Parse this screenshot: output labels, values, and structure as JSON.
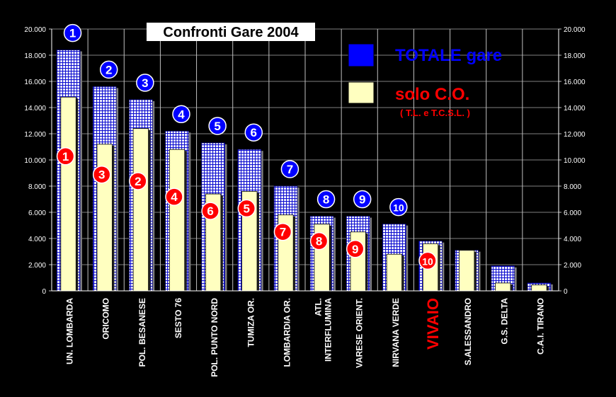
{
  "chart_data": {
    "type": "bar",
    "title": "Confronti Gare 2004",
    "categories": [
      "UN. LOMBARDA",
      "ORICOMO",
      "POL. BESANESE",
      "SESTO 76",
      "POL. PUNTO NORD",
      "TUMIZA OR.",
      "LOMBARDIA OR.",
      "ATL.\nINTERFLUMINA",
      "VARESE ORIENT.",
      "NIRVANA VERDE",
      "VIVAIO",
      "S.ALESSANDRO",
      "G.S. DELTA",
      "C.A.I. TIRANO"
    ],
    "highlight_category": "VIVAIO",
    "series": [
      {
        "name": "TOTALE gare",
        "color": "#0000ff",
        "values": [
          18400,
          15600,
          14600,
          12200,
          11300,
          10800,
          8000,
          5700,
          5700,
          5100,
          3800,
          3100,
          1900,
          600
        ],
        "rank_labels": [
          "1",
          "2",
          "3",
          "4",
          "5",
          "6",
          "7",
          "8",
          "9",
          "10",
          "",
          "",
          "",
          ""
        ]
      },
      {
        "name": "solo C.O.",
        "subtitle": "( T.L. e T.C.S.L. )",
        "color": "#ffffc0",
        "values": [
          14800,
          11200,
          12400,
          10800,
          7400,
          7600,
          5800,
          5100,
          4500,
          2800,
          3600,
          3100,
          600,
          450
        ],
        "rank_labels": [
          "1",
          "3",
          "2",
          "4",
          "6",
          "5",
          "7",
          "8",
          "9",
          "",
          "10",
          "",
          "",
          ""
        ]
      }
    ],
    "ylim": [
      0,
      20000
    ],
    "yticks": [
      0,
      2000,
      4000,
      6000,
      8000,
      10000,
      12000,
      14000,
      16000,
      18000,
      20000
    ],
    "ytick_labels": [
      "0",
      "2.000",
      "4.000",
      "6.000",
      "8.000",
      "10.000",
      "12.000",
      "14.000",
      "16.000",
      "18.000",
      "20.000"
    ],
    "grid": true,
    "legend_position": "top-right"
  }
}
